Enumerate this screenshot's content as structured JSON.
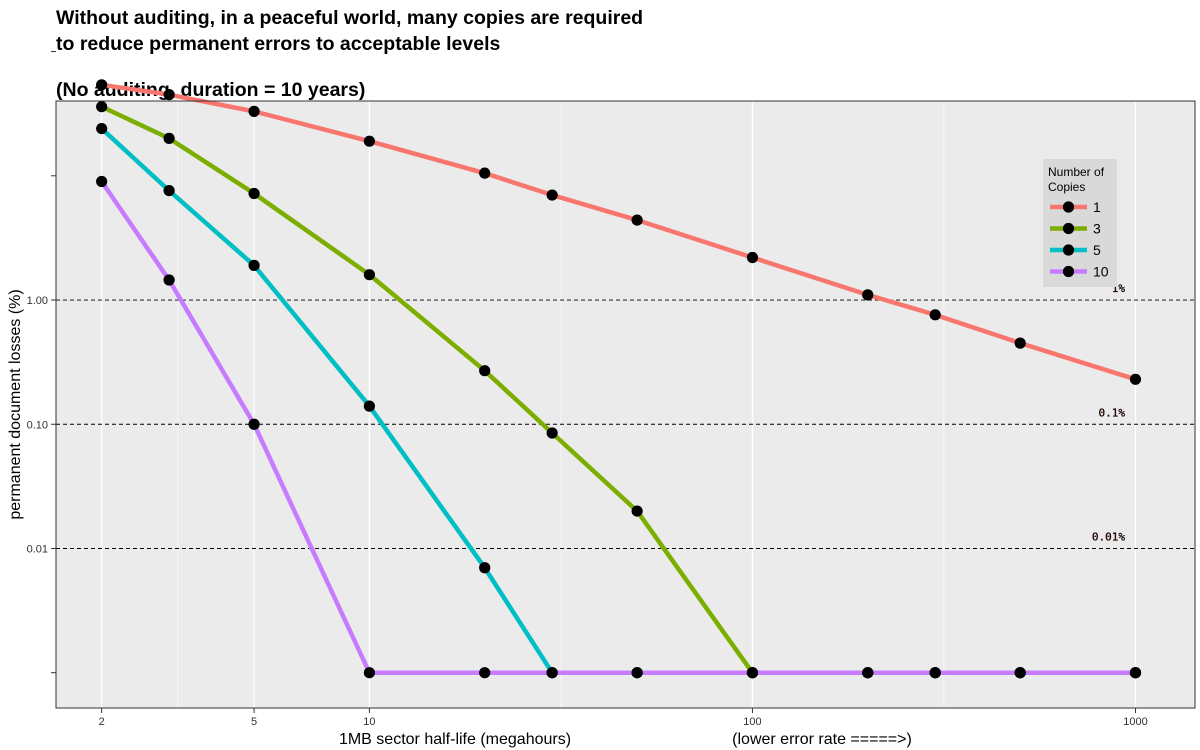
{
  "chart_data": {
    "type": "line",
    "title_line1": "Without auditing, in a peaceful world, many copies are required",
    "title_line2": "to reduce permanent errors to acceptable levels",
    "subtitle": "(No auditing, duration = 10 years)",
    "xlabel": "1MB sector half-life (megahours)",
    "xlabel_note": "(lower error rate =====>)",
    "ylabel": "permanent document losses (%)",
    "x_scale": "log",
    "y_scale": "log",
    "xlim": [
      1.52,
      1430
    ],
    "ylim": [
      0.00052,
      40
    ],
    "x_ticks": [
      2,
      5,
      10,
      100,
      1000
    ],
    "x_tick_labels": [
      "2",
      "5",
      "10",
      "100",
      "1000"
    ],
    "y_ticks": [
      0.001,
      0.01,
      0.1,
      1,
      10,
      100
    ],
    "y_tick_labels": [
      "",
      "0.01",
      "0.10",
      "1.00",
      "",
      ""
    ],
    "reference_lines": [
      {
        "y": 1,
        "label": "1%"
      },
      {
        "y": 0.1,
        "label": "0.1%"
      },
      {
        "y": 0.01,
        "label": "0.01%"
      }
    ],
    "legend_title": "Number of Copies",
    "legend_position": "top-right",
    "x": [
      2,
      3,
      5,
      10,
      20,
      30,
      50,
      100,
      200,
      300,
      500,
      1000
    ],
    "series": [
      {
        "name": "1",
        "color": "#F8766D",
        "values": [
          54,
          45,
          33,
          19,
          10.5,
          7,
          4.4,
          2.2,
          1.1,
          0.76,
          0.45,
          0.23
        ]
      },
      {
        "name": "3",
        "color": "#7CAE00",
        "values": [
          36,
          20,
          7.2,
          1.6,
          0.27,
          0.085,
          0.02,
          0.001,
          0.001,
          0.001,
          0.001,
          0.001
        ]
      },
      {
        "name": "5",
        "color": "#00BFC4",
        "values": [
          24,
          7.6,
          1.9,
          0.14,
          0.007,
          0.001,
          0.001,
          0.001,
          0.001,
          0.001,
          0.001,
          0.001
        ]
      },
      {
        "name": "10",
        "color": "#C77CFF",
        "values": [
          9,
          1.45,
          0.1,
          0.001,
          0.001,
          0.001,
          0.001,
          0.001,
          0.001,
          0.001,
          0.001,
          0.001
        ]
      }
    ]
  }
}
